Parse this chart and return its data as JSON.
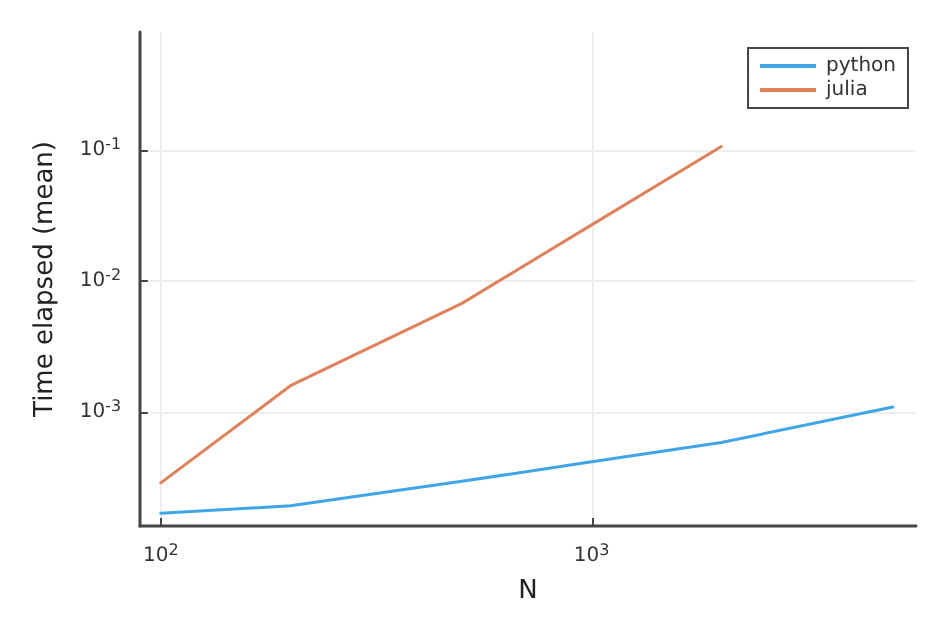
{
  "chart_data": {
    "type": "line",
    "xlabel": "N",
    "ylabel": "Time elapsed (mean)",
    "x": [
      100,
      200,
      500,
      1000,
      2000,
      5000
    ],
    "series": [
      {
        "name": "python",
        "color": "#3da5e8",
        "values": [
          0.00017,
          0.000194,
          0.000298,
          0.00042,
          0.00059,
          0.0011
        ]
      },
      {
        "name": "julia",
        "color": "#e2805a",
        "values": [
          0.00029,
          0.0016,
          0.0068,
          0.027,
          0.107,
          null
        ]
      }
    ],
    "log": "xy",
    "xlim": [
      89.4,
      5660
    ],
    "ylim": [
      0.000136,
      0.8
    ],
    "xticks": [
      {
        "value": 100,
        "label": "10$^{2}$"
      },
      {
        "value": 1000,
        "label": "10$^{3}$"
      }
    ],
    "yticks": [
      {
        "value": 0.001,
        "label": "10$^{-3}$"
      },
      {
        "value": 0.01,
        "label": "10$^{-2}$"
      },
      {
        "value": 0.1,
        "label": "10$^{-1}$"
      }
    ],
    "grid": true,
    "legend": "top right",
    "marker": "none",
    "line_style": "solid"
  }
}
